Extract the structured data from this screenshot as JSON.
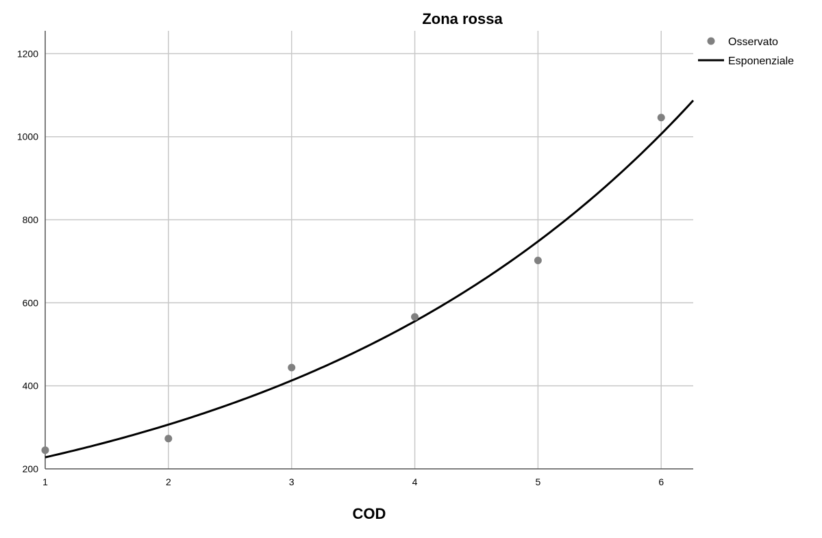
{
  "chart_data": {
    "type": "scatter",
    "title": "Zona rossa",
    "xlabel": "COD",
    "ylabel": "",
    "xlim": [
      1,
      6.26
    ],
    "ylim": [
      200,
      1255
    ],
    "x_ticks": [
      "1",
      "2",
      "3",
      "4",
      "5",
      "6"
    ],
    "y_ticks": [
      "200",
      "400",
      "600",
      "800",
      "1000",
      "1200"
    ],
    "grid": true,
    "legend_position": "top-right",
    "series": [
      {
        "name": "Osservato",
        "kind": "points",
        "color": "#808080",
        "x": [
          1,
          2,
          3,
          4,
          5,
          6
        ],
        "y": [
          245,
          273,
          444,
          566,
          702,
          1046
        ]
      },
      {
        "name": "Esponenziale",
        "kind": "fitted-curve",
        "color": "#000000",
        "model": "exponential",
        "x": [
          1,
          2,
          3,
          4,
          5,
          6,
          6.26
        ],
        "y": [
          228,
          306,
          413,
          556,
          748,
          1007,
          1086
        ]
      }
    ]
  }
}
